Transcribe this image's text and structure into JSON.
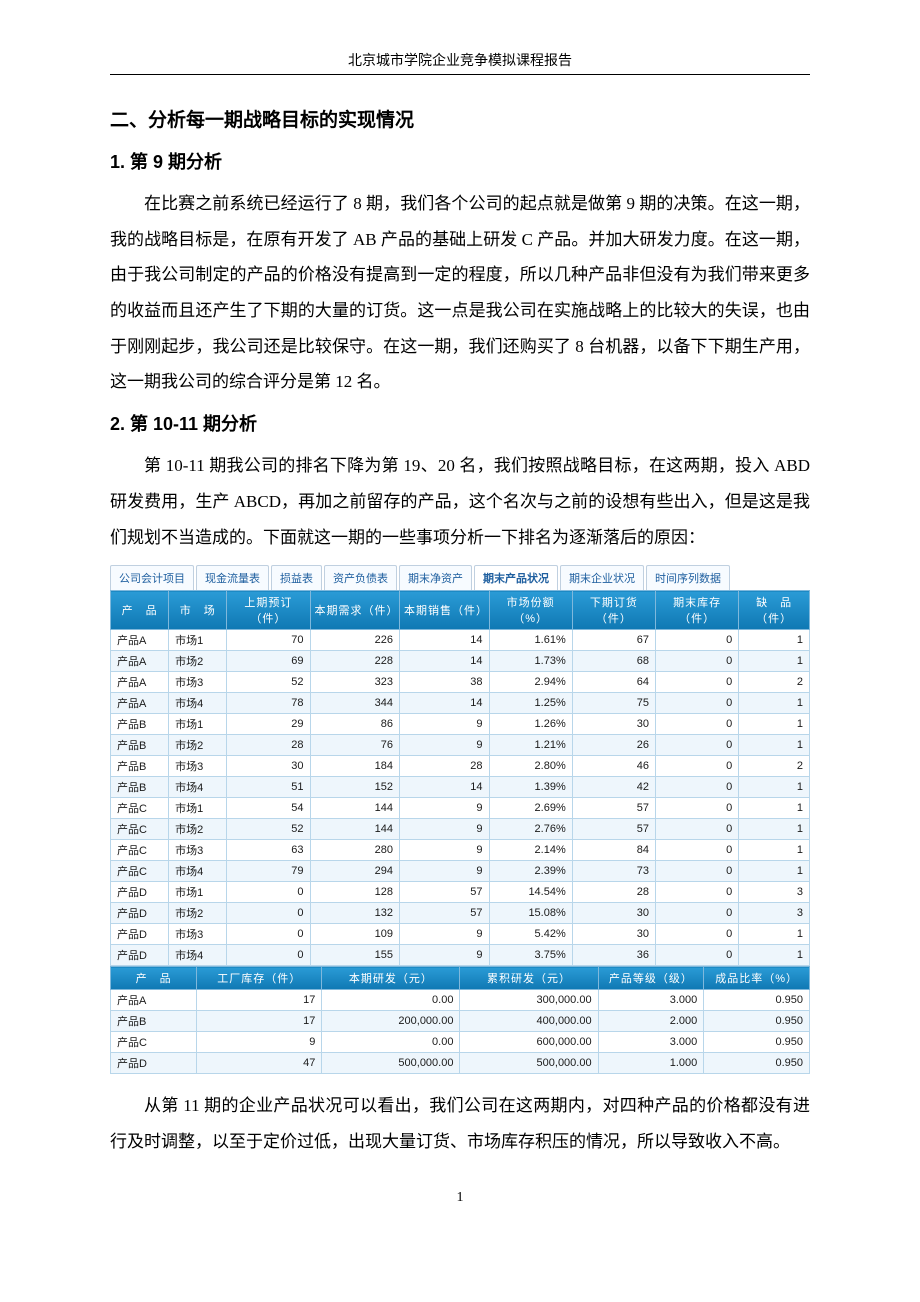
{
  "header": "北京城市学院企业竞争模拟课程报告",
  "section_title": "二、分析每一期战略目标的实现情况",
  "sub1_title": "1. 第 9 期分析",
  "para1": "在比赛之前系统已经运行了 8 期，我们各个公司的起点就是做第 9 期的决策。在这一期，我的战略目标是，在原有开发了 AB 产品的基础上研发 C 产品。并加大研发力度。在这一期，由于我公司制定的产品的价格没有提高到一定的程度，所以几种产品非但没有为我们带来更多的收益而且还产生了下期的大量的订货。这一点是我公司在实施战略上的比较大的失误，也由于刚刚起步，我公司还是比较保守。在这一期，我们还购买了 8 台机器，以备下下期生产用，这一期我公司的综合评分是第 12 名。",
  "sub2_title": "2. 第 10-11 期分析",
  "para2": "第 10-11 期我公司的排名下降为第 19、20 名，我们按照战略目标，在这两期，投入 ABD 研发费用，生产 ABCD，再加之前留存的产品，这个名次与之前的设想有些出入，但是这是我们规划不当造成的。下面就这一期的一些事项分析一下排名为逐渐落后的原因：",
  "para3": "从第 11 期的企业产品状况可以看出，我们公司在这两期内，对四种产品的价格都没有进行及时调整，以至于定价过低，出现大量订货、市场库存积压的情况，所以导致收入不高。",
  "page_number": "1",
  "tabs": {
    "items": [
      "公司会计项目",
      "现金流量表",
      "损益表",
      "资产负债表",
      "期末净资产",
      "期末产品状况",
      "期末企业状况",
      "时间序列数据"
    ],
    "active_index": 5
  },
  "table1": {
    "headers": [
      "产　品",
      "市　场",
      "上期预订（件）",
      "本期需求（件）",
      "本期销售（件）",
      "市场份额（%）",
      "下期订货（件）",
      "期末库存（件）",
      "缺　品（件）"
    ],
    "rows": [
      [
        "产品A",
        "市场1",
        "70",
        "226",
        "14",
        "1.61%",
        "67",
        "0",
        "1"
      ],
      [
        "产品A",
        "市场2",
        "69",
        "228",
        "14",
        "1.73%",
        "68",
        "0",
        "1"
      ],
      [
        "产品A",
        "市场3",
        "52",
        "323",
        "38",
        "2.94%",
        "64",
        "0",
        "2"
      ],
      [
        "产品A",
        "市场4",
        "78",
        "344",
        "14",
        "1.25%",
        "75",
        "0",
        "1"
      ],
      [
        "产品B",
        "市场1",
        "29",
        "86",
        "9",
        "1.26%",
        "30",
        "0",
        "1"
      ],
      [
        "产品B",
        "市场2",
        "28",
        "76",
        "9",
        "1.21%",
        "26",
        "0",
        "1"
      ],
      [
        "产品B",
        "市场3",
        "30",
        "184",
        "28",
        "2.80%",
        "46",
        "0",
        "2"
      ],
      [
        "产品B",
        "市场4",
        "51",
        "152",
        "14",
        "1.39%",
        "42",
        "0",
        "1"
      ],
      [
        "产品C",
        "市场1",
        "54",
        "144",
        "9",
        "2.69%",
        "57",
        "0",
        "1"
      ],
      [
        "产品C",
        "市场2",
        "52",
        "144",
        "9",
        "2.76%",
        "57",
        "0",
        "1"
      ],
      [
        "产品C",
        "市场3",
        "63",
        "280",
        "9",
        "2.14%",
        "84",
        "0",
        "1"
      ],
      [
        "产品C",
        "市场4",
        "79",
        "294",
        "9",
        "2.39%",
        "73",
        "0",
        "1"
      ],
      [
        "产品D",
        "市场1",
        "0",
        "128",
        "57",
        "14.54%",
        "28",
        "0",
        "3"
      ],
      [
        "产品D",
        "市场2",
        "0",
        "132",
        "57",
        "15.08%",
        "30",
        "0",
        "3"
      ],
      [
        "产品D",
        "市场3",
        "0",
        "109",
        "9",
        "5.42%",
        "30",
        "0",
        "1"
      ],
      [
        "产品D",
        "市场4",
        "0",
        "155",
        "9",
        "3.75%",
        "36",
        "0",
        "1"
      ]
    ],
    "align": [
      "tl",
      "tl",
      "tr",
      "tr",
      "tr",
      "tr",
      "tr",
      "tr",
      "tr"
    ]
  },
  "table2": {
    "headers": [
      "产　品",
      "工厂库存（件）",
      "本期研发（元）",
      "累积研发（元）",
      "产品等级（级）",
      "成品比率（%）"
    ],
    "rows": [
      [
        "产品A",
        "17",
        "0.00",
        "300,000.00",
        "3.000",
        "0.950"
      ],
      [
        "产品B",
        "17",
        "200,000.00",
        "400,000.00",
        "2.000",
        "0.950"
      ],
      [
        "产品C",
        "9",
        "0.00",
        "600,000.00",
        "3.000",
        "0.950"
      ],
      [
        "产品D",
        "47",
        "500,000.00",
        "500,000.00",
        "1.000",
        "0.950"
      ]
    ],
    "align": [
      "tl",
      "tr",
      "tr",
      "tr",
      "tr",
      "tr"
    ]
  },
  "colors": {
    "header_bg_top": "#2a9bd6",
    "header_bg_bottom": "#0f78b3",
    "row_alt": "#eef6fc",
    "border": "#b8d6ea",
    "tab_text": "#2060a0"
  }
}
